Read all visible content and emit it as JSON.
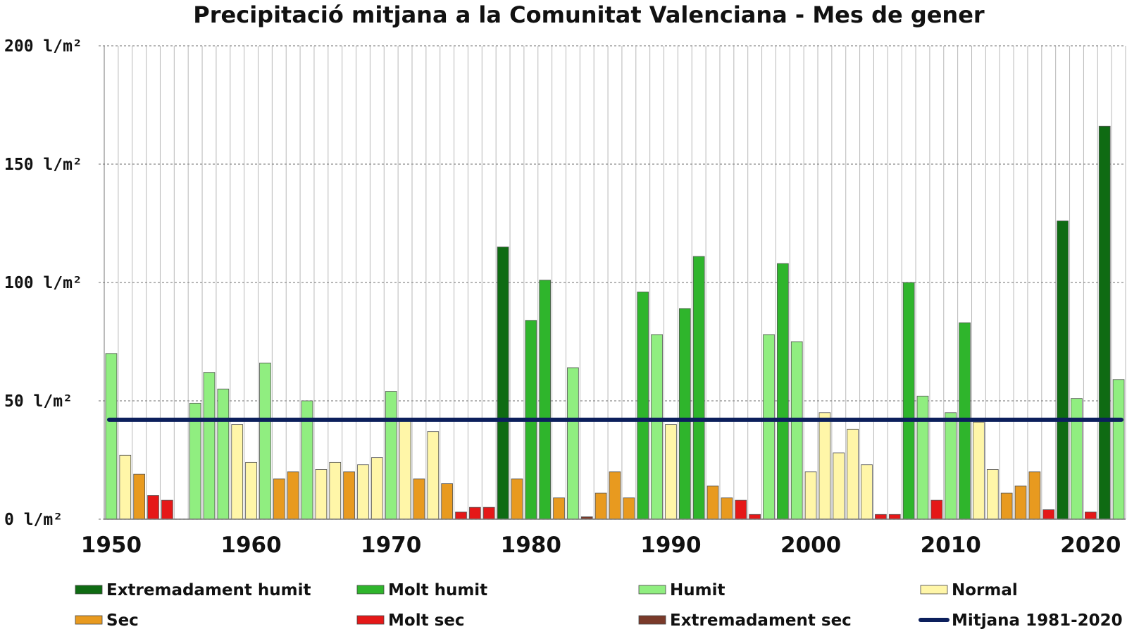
{
  "colors": {
    "extremadament_humit": "#0f6b13",
    "molt_humit": "#2fb52c",
    "humit": "#90ee80",
    "normal": "#fff6a8",
    "sec": "#e89a1f",
    "molt_sec": "#e51818",
    "extremadament_sec": "#7a3a2a",
    "mitjana": "#0c1f5c"
  },
  "chart_data": {
    "type": "bar",
    "title": "Precipitació mitjana a la Comunitat Valenciana - Mes de gener",
    "xlabel": "",
    "ylabel": "",
    "ylim": [
      0,
      200
    ],
    "y_ticks": [
      {
        "value": 0,
        "label": "0 l/m²"
      },
      {
        "value": 50,
        "label": "50 l/m²"
      },
      {
        "value": 100,
        "label": "100 l/m²"
      },
      {
        "value": 150,
        "label": "150 l/m²"
      },
      {
        "value": 200,
        "label": "200 l/m²"
      }
    ],
    "x_tick_labels": [
      "1950",
      "1960",
      "1970",
      "1980",
      "1990",
      "2000",
      "2010",
      "2020"
    ],
    "grid": true,
    "legend_position": "bottom",
    "years": [
      1950,
      1951,
      1952,
      1953,
      1954,
      1955,
      1956,
      1957,
      1958,
      1959,
      1960,
      1961,
      1962,
      1963,
      1964,
      1965,
      1966,
      1967,
      1968,
      1969,
      1970,
      1971,
      1972,
      1973,
      1974,
      1975,
      1976,
      1977,
      1978,
      1979,
      1980,
      1981,
      1982,
      1983,
      1984,
      1985,
      1986,
      1987,
      1988,
      1989,
      1990,
      1991,
      1992,
      1993,
      1994,
      1995,
      1996,
      1997,
      1998,
      1999,
      2000,
      2001,
      2002,
      2003,
      2004,
      2005,
      2006,
      2007,
      2008,
      2009,
      2010,
      2011,
      2012,
      2013,
      2014,
      2015,
      2016,
      2017,
      2018,
      2019,
      2020,
      2021,
      2022
    ],
    "values": [
      70,
      27,
      19,
      10,
      8,
      0,
      49,
      62,
      55,
      40,
      24,
      66,
      17,
      20,
      50,
      21,
      24,
      20,
      23,
      26,
      54,
      42,
      17,
      37,
      15,
      3,
      5,
      5,
      115,
      17,
      84,
      101,
      9,
      64,
      1,
      11,
      20,
      9,
      96,
      78,
      40,
      89,
      111,
      14,
      9,
      8,
      2,
      78,
      108,
      75,
      20,
      45,
      28,
      38,
      23,
      2,
      2,
      100,
      52,
      8,
      45,
      83,
      41,
      21,
      11,
      14,
      20,
      4,
      126,
      51,
      3,
      166,
      59
    ],
    "categories": [
      "Humit",
      "Normal",
      "Sec",
      "Molt sec",
      "Molt sec",
      "Normal",
      "Humit",
      "Humit",
      "Humit",
      "Normal",
      "Normal",
      "Humit",
      "Sec",
      "Sec",
      "Humit",
      "Normal",
      "Normal",
      "Sec",
      "Normal",
      "Normal",
      "Humit",
      "Normal",
      "Sec",
      "Normal",
      "Sec",
      "Molt sec",
      "Molt sec",
      "Molt sec",
      "Extremadament humit",
      "Sec",
      "Molt humit",
      "Molt humit",
      "Sec",
      "Humit",
      "Extremadament sec",
      "Sec",
      "Sec",
      "Sec",
      "Molt humit",
      "Humit",
      "Normal",
      "Molt humit",
      "Molt humit",
      "Sec",
      "Sec",
      "Molt sec",
      "Molt sec",
      "Humit",
      "Molt humit",
      "Humit",
      "Normal",
      "Normal",
      "Normal",
      "Normal",
      "Normal",
      "Molt sec",
      "Molt sec",
      "Molt humit",
      "Humit",
      "Molt sec",
      "Humit",
      "Molt humit",
      "Normal",
      "Normal",
      "Sec",
      "Sec",
      "Sec",
      "Molt sec",
      "Extremadament humit",
      "Humit",
      "Molt sec",
      "Extremadament humit",
      "Humit"
    ],
    "reference_line": {
      "name": "Mitjana 1981-2020",
      "value": 42
    },
    "legend": [
      {
        "label": "Extremadament humit",
        "color_key": "extremadament_humit",
        "kind": "bar"
      },
      {
        "label": "Molt humit",
        "color_key": "molt_humit",
        "kind": "bar"
      },
      {
        "label": "Humit",
        "color_key": "humit",
        "kind": "bar"
      },
      {
        "label": "Normal",
        "color_key": "normal",
        "kind": "bar"
      },
      {
        "label": "Sec",
        "color_key": "sec",
        "kind": "bar"
      },
      {
        "label": "Molt sec",
        "color_key": "molt_sec",
        "kind": "bar"
      },
      {
        "label": "Extremadament sec",
        "color_key": "extremadament_sec",
        "kind": "bar"
      },
      {
        "label": "Mitjana 1981-2020",
        "color_key": "mitjana",
        "kind": "line"
      }
    ]
  }
}
